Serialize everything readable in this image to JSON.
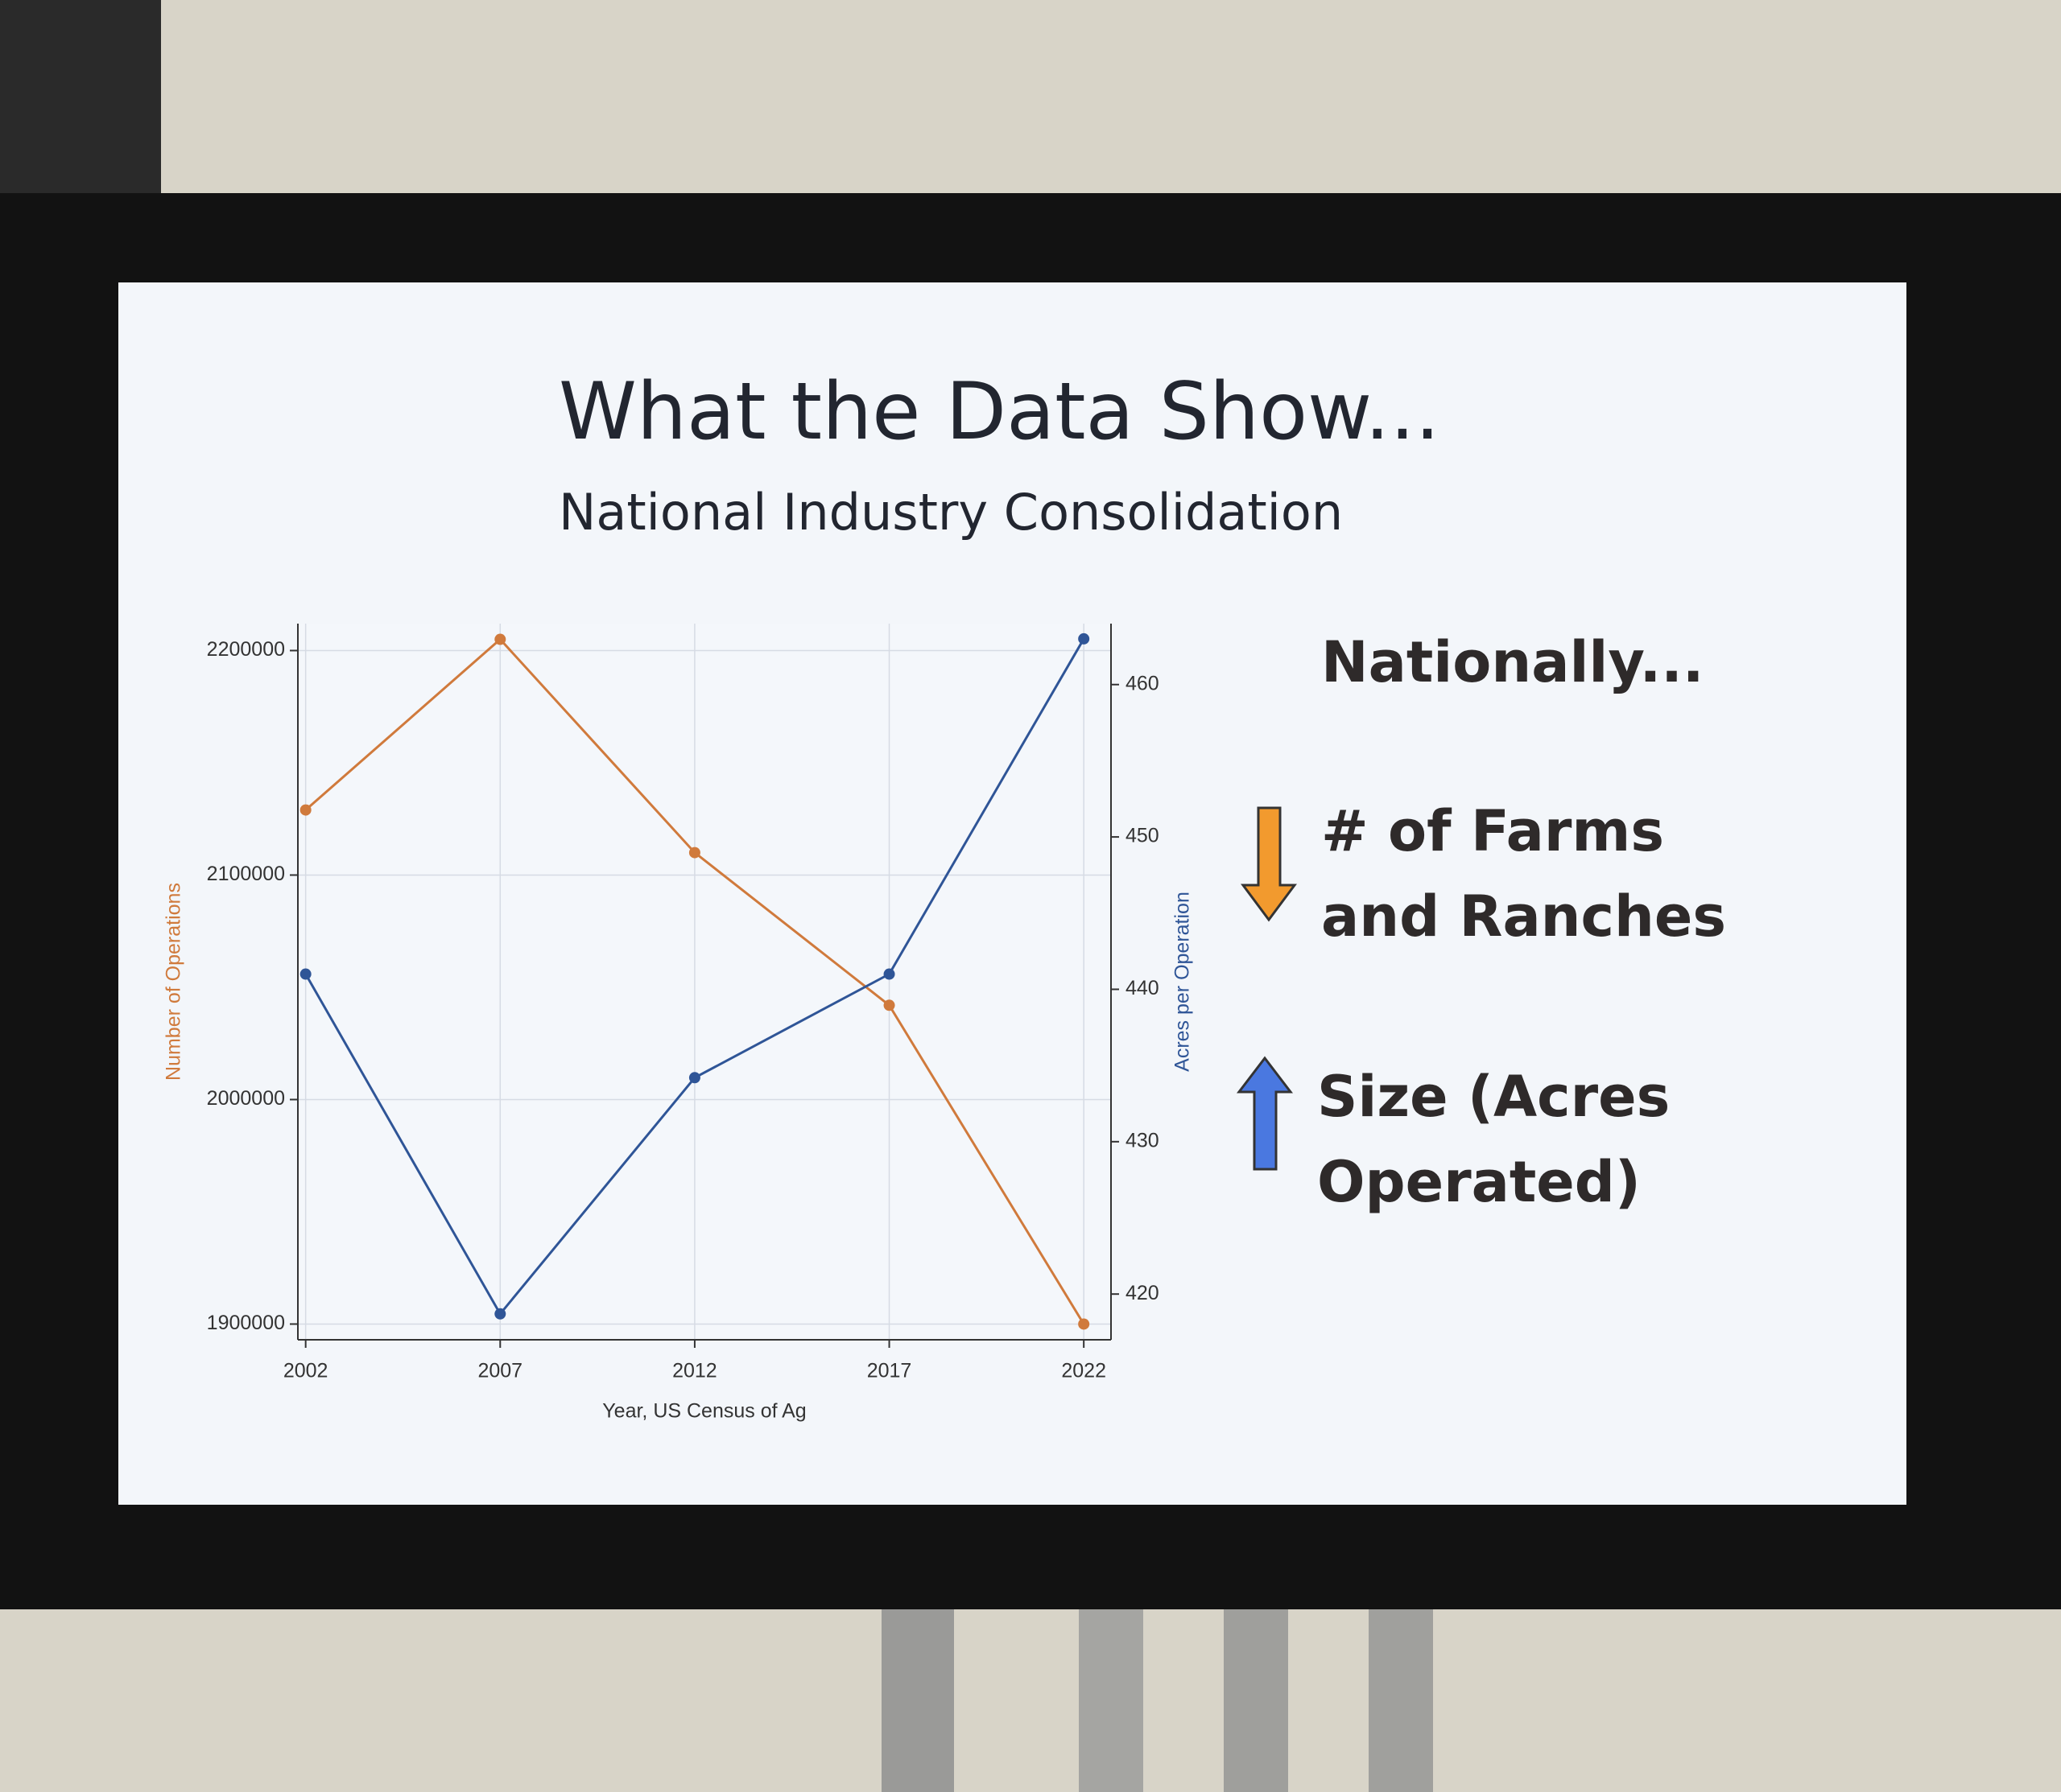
{
  "chart_data": {
    "type": "line",
    "title": "What the Data Show...",
    "subtitle": "National Industry Consolidation",
    "annotations": [
      "Nationally...",
      "# of Farms and Ranches",
      "Size (Acres Operated)"
    ],
    "x_label": "Year, US Census of Ag",
    "y_label": "Number of Operations",
    "y2_label": "Acres per Operation",
    "x": [
      2002,
      2007,
      2012,
      2017,
      2022
    ],
    "series": [
      {
        "color": "#d07a3c",
        "values": [
          2129000,
          2205000,
          2110000,
          2042000,
          1900000
        ]
      },
      {
        "color": "#2f5597",
        "axis": "y2",
        "values": [
          441,
          418.7,
          434.2,
          441,
          463
        ]
      }
    ],
    "xlim": [
      2001.8,
      2022.7
    ],
    "xticks": [
      2002,
      2007,
      2012,
      2017,
      2022
    ],
    "ylim": [
      1893000,
      2212000
    ],
    "yticks": [
      1900000,
      2000000,
      2100000,
      2200000
    ],
    "y2lim": [
      417,
      464
    ],
    "y2ticks": [
      420,
      430,
      440,
      450,
      460
    ],
    "grid": true
  }
}
